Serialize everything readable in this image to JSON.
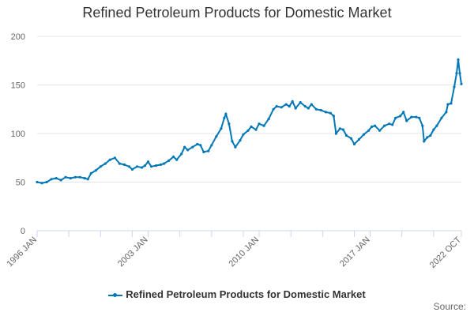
{
  "chart_data": {
    "type": "line",
    "title": "Refined Petroleum Products for Domestic Market",
    "xlabel": "",
    "ylabel": "",
    "ylim": [
      0,
      200
    ],
    "yticks": [
      0,
      50,
      100,
      150,
      200
    ],
    "x_range": [
      1996.0,
      2022.75
    ],
    "x_tick_labels": [
      {
        "label": "1996 JAN",
        "x": 1996.0
      },
      {
        "label": "2003 JAN",
        "x": 2003.0
      },
      {
        "label": "2010 JAN",
        "x": 2010.0
      },
      {
        "label": "2017 JAN",
        "x": 2017.0
      },
      {
        "label": "2022 OCT",
        "x": 2022.75
      }
    ],
    "minor_ticks": [
      1996,
      1998,
      2000,
      2002,
      2003,
      2005,
      2007,
      2009,
      2010,
      2012,
      2014,
      2016,
      2017,
      2019,
      2021,
      2022.75
    ],
    "series": [
      {
        "name": "Refined Petroleum Products for Domestic Market",
        "color": "#0077b6",
        "points": [
          [
            1996.0,
            50
          ],
          [
            1996.3,
            49
          ],
          [
            1996.6,
            50
          ],
          [
            1996.9,
            53
          ],
          [
            1997.2,
            54
          ],
          [
            1997.5,
            52
          ],
          [
            1997.8,
            55
          ],
          [
            1998.1,
            54
          ],
          [
            1998.4,
            55
          ],
          [
            1998.7,
            55
          ],
          [
            1999.0,
            54
          ],
          [
            1999.2,
            53
          ],
          [
            1999.4,
            59
          ],
          [
            1999.7,
            62
          ],
          [
            2000.0,
            66
          ],
          [
            2000.3,
            69
          ],
          [
            2000.6,
            73
          ],
          [
            2000.9,
            75
          ],
          [
            2001.2,
            69
          ],
          [
            2001.5,
            68
          ],
          [
            2001.8,
            66
          ],
          [
            2002.0,
            63
          ],
          [
            2002.3,
            66
          ],
          [
            2002.6,
            65
          ],
          [
            2002.8,
            67
          ],
          [
            2003.0,
            71
          ],
          [
            2003.2,
            66
          ],
          [
            2003.5,
            67
          ],
          [
            2003.8,
            68
          ],
          [
            2004.0,
            69
          ],
          [
            2004.3,
            72
          ],
          [
            2004.6,
            76
          ],
          [
            2004.8,
            73
          ],
          [
            2005.1,
            79
          ],
          [
            2005.3,
            86
          ],
          [
            2005.5,
            83
          ],
          [
            2005.8,
            86
          ],
          [
            2006.1,
            89
          ],
          [
            2006.3,
            88
          ],
          [
            2006.5,
            81
          ],
          [
            2006.8,
            82
          ],
          [
            2007.0,
            88
          ],
          [
            2007.3,
            97
          ],
          [
            2007.6,
            105
          ],
          [
            2007.8,
            116
          ],
          [
            2007.9,
            120
          ],
          [
            2008.1,
            110
          ],
          [
            2008.3,
            92
          ],
          [
            2008.5,
            86
          ],
          [
            2008.8,
            93
          ],
          [
            2009.0,
            99
          ],
          [
            2009.3,
            103
          ],
          [
            2009.5,
            107
          ],
          [
            2009.8,
            104
          ],
          [
            2010.0,
            110
          ],
          [
            2010.3,
            108
          ],
          [
            2010.6,
            115
          ],
          [
            2010.9,
            125
          ],
          [
            2011.1,
            128
          ],
          [
            2011.4,
            127
          ],
          [
            2011.7,
            130
          ],
          [
            2011.9,
            128
          ],
          [
            2012.1,
            133
          ],
          [
            2012.3,
            126
          ],
          [
            2012.6,
            132
          ],
          [
            2012.9,
            128
          ],
          [
            2013.1,
            126
          ],
          [
            2013.3,
            130
          ],
          [
            2013.6,
            125
          ],
          [
            2013.9,
            124
          ],
          [
            2014.2,
            122
          ],
          [
            2014.5,
            121
          ],
          [
            2014.7,
            118
          ],
          [
            2014.85,
            100
          ],
          [
            2015.1,
            105
          ],
          [
            2015.3,
            104
          ],
          [
            2015.5,
            98
          ],
          [
            2015.8,
            95
          ],
          [
            2016.0,
            89
          ],
          [
            2016.3,
            94
          ],
          [
            2016.6,
            99
          ],
          [
            2016.9,
            103
          ],
          [
            2017.1,
            107
          ],
          [
            2017.3,
            108
          ],
          [
            2017.6,
            103
          ],
          [
            2017.9,
            108
          ],
          [
            2018.2,
            110
          ],
          [
            2018.4,
            109
          ],
          [
            2018.6,
            116
          ],
          [
            2018.9,
            118
          ],
          [
            2019.1,
            122
          ],
          [
            2019.3,
            113
          ],
          [
            2019.6,
            117
          ],
          [
            2019.9,
            117
          ],
          [
            2020.1,
            116
          ],
          [
            2020.3,
            108
          ],
          [
            2020.4,
            92
          ],
          [
            2020.6,
            96
          ],
          [
            2020.8,
            98
          ],
          [
            2021.0,
            104
          ],
          [
            2021.2,
            108
          ],
          [
            2021.5,
            116
          ],
          [
            2021.8,
            122
          ],
          [
            2021.9,
            130
          ],
          [
            2022.1,
            131
          ],
          [
            2022.3,
            148
          ],
          [
            2022.45,
            162
          ],
          [
            2022.55,
            176
          ],
          [
            2022.65,
            162
          ],
          [
            2022.75,
            151
          ]
        ]
      }
    ],
    "legend": "bottom",
    "source_label": "Source:"
  }
}
